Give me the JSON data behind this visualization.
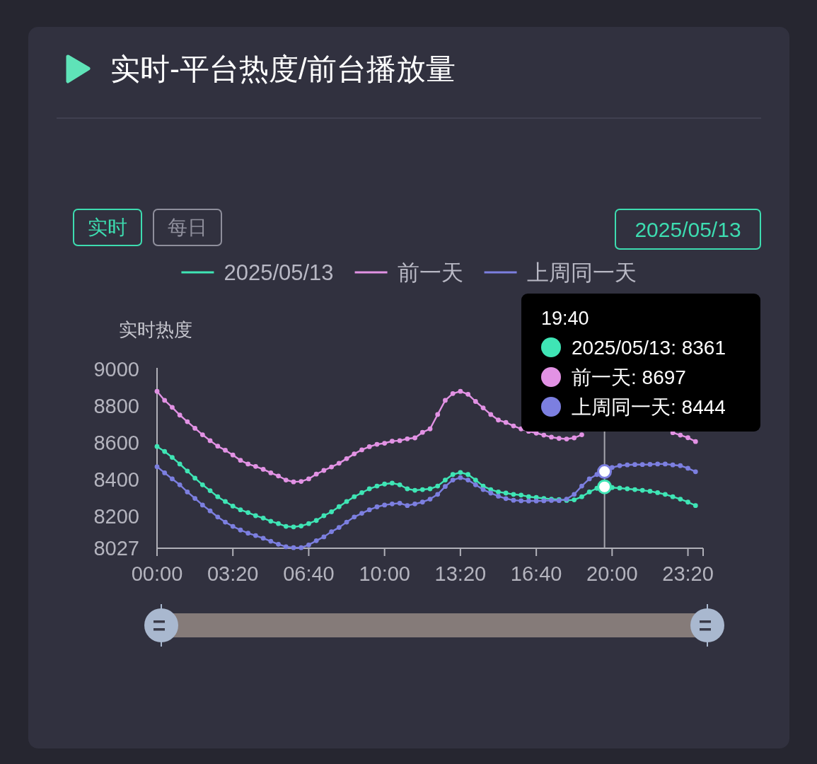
{
  "chart_data": {
    "type": "line",
    "title": "实时-平台热度/前台播放量",
    "ylabel": "实时热度",
    "annotations": [
      "实时",
      "每日",
      "2025/05/13",
      "19:40",
      "2025/05/13: 8361",
      "前一天: 8697",
      "上周同一天: 8444"
    ],
    "x": [
      0,
      0.333,
      0.667,
      1,
      1.333,
      1.667,
      2,
      2.333,
      2.667,
      3,
      3.333,
      3.667,
      4,
      4.333,
      4.667,
      5,
      5.333,
      5.667,
      6,
      6.333,
      6.667,
      7,
      7.333,
      7.667,
      8,
      8.333,
      8.667,
      9,
      9.333,
      9.667,
      10,
      10.333,
      10.667,
      11,
      11.333,
      11.667,
      12,
      12.333,
      12.667,
      13,
      13.333,
      13.667,
      14,
      14.333,
      14.667,
      15,
      15.333,
      15.667,
      16,
      16.333,
      16.667,
      17,
      17.333,
      17.667,
      18,
      18.333,
      18.667,
      19,
      19.333,
      19.667,
      20,
      20.333,
      20.667,
      21,
      21.333,
      21.667,
      22,
      22.333,
      22.667,
      23,
      23.333,
      23.667
    ],
    "xlim": [
      0,
      24
    ],
    "xticks": [
      {
        "value": 0,
        "label": "00:00"
      },
      {
        "value": 3.333,
        "label": "03:20"
      },
      {
        "value": 6.667,
        "label": "06:40"
      },
      {
        "value": 10,
        "label": "10:00"
      },
      {
        "value": 13.333,
        "label": "13:20"
      },
      {
        "value": 16.667,
        "label": "16:40"
      },
      {
        "value": 20,
        "label": "20:00"
      },
      {
        "value": 23.333,
        "label": "23:20"
      },
      {
        "value": 24,
        "label": null
      }
    ],
    "ylim": [
      8027,
      9000
    ],
    "yticks": [
      8027,
      8200,
      8400,
      8600,
      8800,
      9000
    ],
    "series": [
      {
        "name": "2025/05/13",
        "color": "#3fe5b5",
        "values": [
          8580,
          8553,
          8521,
          8485,
          8447,
          8408,
          8372,
          8340,
          8307,
          8281,
          8256,
          8236,
          8221,
          8204,
          8191,
          8174,
          8161,
          8146,
          8143,
          8148,
          8161,
          8178,
          8204,
          8225,
          8253,
          8281,
          8307,
          8329,
          8350,
          8365,
          8376,
          8381,
          8372,
          8350,
          8342,
          8346,
          8350,
          8365,
          8398,
          8428,
          8439,
          8428,
          8398,
          8365,
          8346,
          8333,
          8327,
          8320,
          8316,
          8307,
          8303,
          8298,
          8294,
          8292,
          8287,
          8290,
          8307,
          8333,
          8353,
          8361,
          8357,
          8354,
          8350,
          8346,
          8342,
          8337,
          8329,
          8320,
          8307,
          8294,
          8278,
          8259
        ]
      },
      {
        "name": "前一天",
        "color": "#e292e4",
        "values": [
          8880,
          8831,
          8793,
          8751,
          8715,
          8679,
          8644,
          8612,
          8582,
          8560,
          8534,
          8505,
          8485,
          8472,
          8456,
          8437,
          8420,
          8398,
          8388,
          8390,
          8404,
          8430,
          8450,
          8469,
          8489,
          8514,
          8540,
          8562,
          8579,
          8592,
          8598,
          8609,
          8612,
          8622,
          8627,
          8657,
          8676,
          8754,
          8831,
          8868,
          8880,
          8864,
          8825,
          8790,
          8754,
          8724,
          8711,
          8692,
          8676,
          8663,
          8653,
          8642,
          8631,
          8624,
          8621,
          8627,
          8644,
          null,
          null,
          null,
          null,
          null,
          null,
          null,
          null,
          null,
          null,
          null,
          8655,
          8642,
          8628,
          8607
        ]
      },
      {
        "name": "上周同一天",
        "color": "#7c7fe0",
        "values": [
          8470,
          8437,
          8404,
          8372,
          8333,
          8298,
          8262,
          8230,
          8197,
          8169,
          8146,
          8126,
          8109,
          8096,
          8081,
          8065,
          8049,
          8035,
          8030,
          8030,
          8045,
          8068,
          8089,
          8117,
          8140,
          8169,
          8197,
          8217,
          8236,
          8252,
          8262,
          8268,
          8272,
          8259,
          8268,
          8278,
          8294,
          8320,
          8363,
          8398,
          8411,
          8398,
          8372,
          8346,
          8327,
          8310,
          8297,
          8288,
          8285,
          8284,
          8284,
          8285,
          8287,
          8286,
          8294,
          8320,
          8365,
          8404,
          8428,
          8444,
          8466,
          8476,
          8480,
          8482,
          8482,
          8483,
          8485,
          8485,
          8480,
          8476,
          8462,
          8443
        ]
      }
    ],
    "legend": "top",
    "marker": "circle",
    "line_style": "solid",
    "ref_lines": [
      {
        "axis": "x",
        "value": 19.667,
        "color": "#a6a6ae"
      }
    ]
  }
}
